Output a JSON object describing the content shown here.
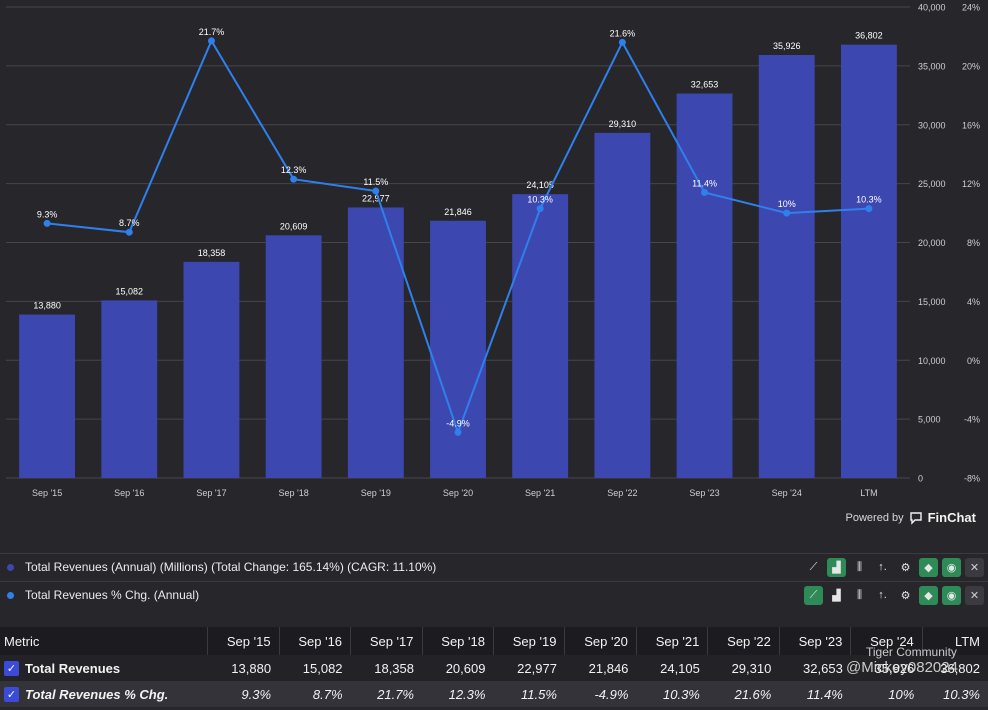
{
  "chart_data": {
    "type": "bar",
    "categories": [
      "Sep '15",
      "Sep '16",
      "Sep '17",
      "Sep '18",
      "Sep '19",
      "Sep '20",
      "Sep '21",
      "Sep '22",
      "Sep '23",
      "Sep '24",
      "LTM"
    ],
    "series": [
      {
        "name": "Total Revenues (Annual) (Millions)",
        "type": "bar",
        "axis": "left",
        "color": "#3d47b0",
        "values": [
          13880,
          15082,
          18358,
          20609,
          22977,
          21846,
          24105,
          29310,
          32653,
          35926,
          36802
        ],
        "labels": [
          "13,880",
          "15,082",
          "18,358",
          "20,609",
          "22,977",
          "21,846",
          "24,105",
          "29,310",
          "32,653",
          "35,926",
          "36,802"
        ]
      },
      {
        "name": "Total Revenues % Chg. (Annual)",
        "type": "line",
        "axis": "right",
        "color": "#2f80ed",
        "values": [
          9.3,
          8.7,
          21.7,
          12.3,
          11.5,
          -4.9,
          10.3,
          21.6,
          11.4,
          10.0,
          10.3
        ],
        "labels": [
          "9.3%",
          "8.7%",
          "21.7%",
          "12.3%",
          "11.5%",
          "-4.9%",
          "10.3%",
          "21.6%",
          "11.4%",
          "10%",
          "10.3%"
        ]
      }
    ],
    "x_tick_labels": [
      "Sep '15",
      "Sep '16",
      "Sep '17",
      "Sep '18",
      "Sep '19",
      "Sep '20",
      "Sep '21",
      "Sep '22",
      "Sep '23",
      "Sep '24",
      "LTM"
    ],
    "y_left": {
      "range": [
        0,
        40000
      ],
      "ticks": [
        "0",
        "5,000",
        "10,000",
        "15,000",
        "20,000",
        "25,000",
        "30,000",
        "35,000",
        "40,000"
      ]
    },
    "y_right": {
      "range": [
        -8,
        24
      ],
      "ticks": [
        "-8%",
        "-4%",
        "0%",
        "4%",
        "8%",
        "12%",
        "16%",
        "20%",
        "24%"
      ]
    },
    "grid": true
  },
  "branding": {
    "powered_by": "Powered by",
    "logo": "FinChat"
  },
  "legend": [
    {
      "color": "#3d47b0",
      "label": "Total Revenues (Annual) (Millions) (Total Change: 165.14%) (CAGR: 11.10%)",
      "active_tool": "bar"
    },
    {
      "color": "#2f80ed",
      "label": "Total Revenues % Chg. (Annual)",
      "active_tool": "line"
    }
  ],
  "table": {
    "header": [
      "Metric",
      "Sep '15",
      "Sep '16",
      "Sep '17",
      "Sep '18",
      "Sep '19",
      "Sep '20",
      "Sep '21",
      "Sep '22",
      "Sep '23",
      "Sep '24",
      "LTM"
    ],
    "rows": [
      {
        "name": "Total Revenues",
        "values": [
          "13,880",
          "15,082",
          "18,358",
          "20,609",
          "22,977",
          "21,846",
          "24,105",
          "29,310",
          "32,653",
          "35,926",
          "36,802"
        ]
      },
      {
        "name": "Total Revenues % Chg.",
        "values": [
          "9.3%",
          "8.7%",
          "21.7%",
          "12.3%",
          "11.5%",
          "-4.9%",
          "10.3%",
          "21.6%",
          "11.4%",
          "10%",
          "10.3%"
        ]
      }
    ]
  },
  "watermark": {
    "line1": "Tiger Community",
    "line2": "@Mickey082024"
  }
}
